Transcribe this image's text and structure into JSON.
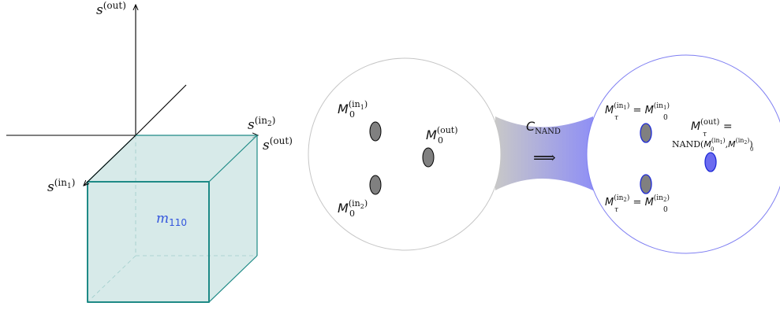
{
  "axes": {
    "s_out_top": {
      "main": "s",
      "sup": "(out)"
    },
    "s_in2": {
      "main": "s",
      "sup": "(in",
      "sub": "2",
      "close": ")"
    },
    "s_out_right": {
      "main": "s",
      "sup": "(out)"
    },
    "s_in1": {
      "main": "s",
      "sup": "(in",
      "sub": "1",
      "close": ")"
    }
  },
  "cube": {
    "label_main": "m",
    "label_sub": "110",
    "fill_color": "#c9e3e1",
    "edge_color": "#1e8a86",
    "sub_color": "#3355dd"
  },
  "left_region": {
    "manifold_in1": {
      "main": "M",
      "sub": "0",
      "sup": "(in",
      "supsub": "1",
      "close": ")"
    },
    "manifold_out": {
      "main": "M",
      "sub": "0",
      "sup": "(out)"
    },
    "manifold_in2": {
      "main": "M",
      "sub": "0",
      "sup": "(in",
      "supsub": "2",
      "close": ")"
    }
  },
  "channel": {
    "label_main": "C",
    "label_sub": "NAND",
    "arrow": "⟹",
    "gradient_from": "#c8c8c8",
    "gradient_to": "#8f8ff5"
  },
  "right_region": {
    "tau_in1": {
      "lhs": "M",
      "lhs_sub": "τ",
      "lhs_sup": "(in",
      "lhs_supsub": "1",
      "close": ")",
      "eq": " = ",
      "rhs": "M",
      "rhs_sub": "0",
      "rhs_sup": "(in",
      "rhs_supsub": "1",
      "rhs_close": ")"
    },
    "tau_out_line1": {
      "lhs": "M",
      "lhs_sub": "τ",
      "lhs_sup": "(out)",
      "eq": " ="
    },
    "tau_out_line2": {
      "text": "NAND(",
      "m1": "M",
      "m1_sub": "0",
      "m1_sup": "(in",
      "m1_supsub": "1",
      "m1_close": ")",
      "comma": ",",
      "m2": "M",
      "m2_sub": "0",
      "m2_sup": "(in",
      "m2_supsub": "2",
      "m2_close": ")",
      "end": ")"
    },
    "tau_in2": {
      "lhs": "M",
      "lhs_sub": "τ",
      "lhs_sup": "(in",
      "lhs_supsub": "2",
      "close": ")",
      "eq": " = ",
      "rhs": "M",
      "rhs_sub": "0",
      "rhs_sup": "(in",
      "rhs_supsub": "2",
      "rhs_close": ")"
    }
  },
  "colors": {
    "left_circle": "#c6c6c6",
    "right_circle": "#7f7ff2",
    "blob_gray": "#808080",
    "blob_blue": "#6b6bf0",
    "blob_blue_edge": "#1f2bd6"
  }
}
